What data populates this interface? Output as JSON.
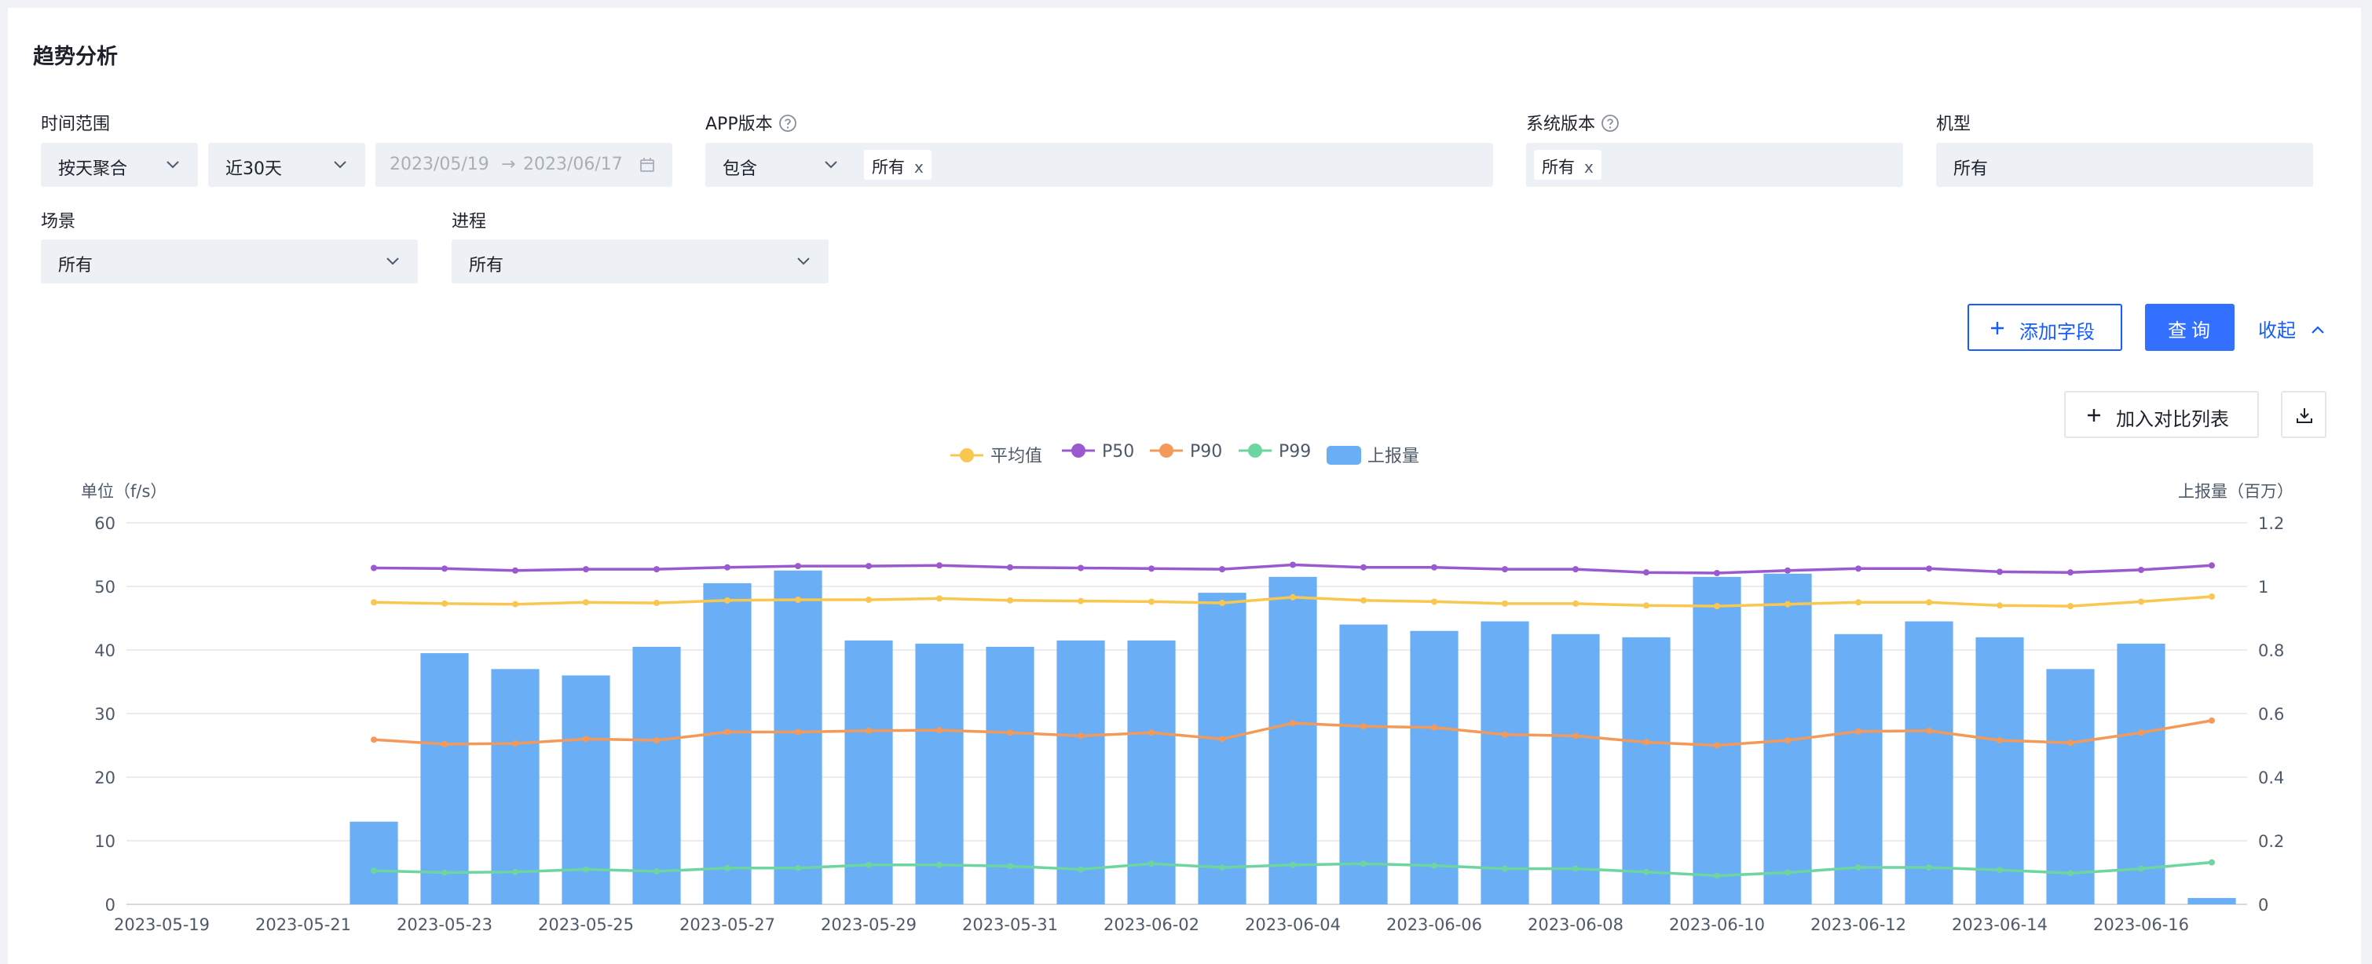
{
  "page": {
    "title": "趋势分析"
  },
  "filters": {
    "time_range": {
      "label": "时间范围",
      "aggregation": "按天聚合",
      "preset": "近30天",
      "start_date": "2023/05/19",
      "arrow": "→",
      "end_date": "2023/06/17"
    },
    "app_version": {
      "label": "APP版本",
      "operator": "包含",
      "tag": "所有",
      "tag_remove": "x"
    },
    "os_version": {
      "label": "系统版本",
      "tag": "所有",
      "tag_remove": "x"
    },
    "model": {
      "label": "机型",
      "value": "所有"
    },
    "scene": {
      "label": "场景",
      "value": "所有"
    },
    "process": {
      "label": "进程",
      "value": "所有"
    }
  },
  "actions": {
    "add_field_label": "添加字段",
    "query_label": "查询",
    "collapse_label": "收起",
    "add_compare_label": "加入对比列表"
  },
  "colors": {
    "accent": "#165dff",
    "avg": "#f9c74f",
    "p50": "#9b59d0",
    "p90": "#f39a5a",
    "p99": "#6dd5a0",
    "bars": "#6aaff5"
  },
  "icons": {
    "help": "question-circle-icon",
    "calendar": "calendar-icon",
    "plus": "plus-icon",
    "chevron": "chevron-down-icon",
    "collapse": "chevron-up-icon",
    "download": "download-icon"
  },
  "chart_data": {
    "type": "bar+line",
    "left_axis_unit": "单位（f/s）",
    "right_axis_unit": "上报量（百万）",
    "left_ylim": [
      0,
      60
    ],
    "left_ticks": [
      0,
      10,
      20,
      30,
      40,
      50,
      60
    ],
    "right_ylim": [
      0,
      1.2
    ],
    "right_ticks": [
      "0",
      "0.2",
      "0.4",
      "0.6",
      "0.8",
      "1",
      "1.2"
    ],
    "grid": true,
    "legend_position": "top-center",
    "categories": [
      "2023-05-19",
      "2023-05-20",
      "2023-05-21",
      "2023-05-22",
      "2023-05-23",
      "2023-05-24",
      "2023-05-25",
      "2023-05-26",
      "2023-05-27",
      "2023-05-28",
      "2023-05-29",
      "2023-05-30",
      "2023-05-31",
      "2023-06-01",
      "2023-06-02",
      "2023-06-03",
      "2023-06-04",
      "2023-06-05",
      "2023-06-06",
      "2023-06-07",
      "2023-06-08",
      "2023-06-09",
      "2023-06-10",
      "2023-06-11",
      "2023-06-12",
      "2023-06-13",
      "2023-06-14",
      "2023-06-15",
      "2023-06-16",
      "2023-06-17"
    ],
    "x_tick_labels": [
      "2023-05-19",
      "2023-05-21",
      "2023-05-23",
      "2023-05-25",
      "2023-05-27",
      "2023-05-29",
      "2023-05-31",
      "2023-06-02",
      "2023-06-04",
      "2023-06-06",
      "2023-06-08",
      "2023-06-10",
      "2023-06-12",
      "2023-06-14",
      "2023-06-16"
    ],
    "bar_series": {
      "name": "上报量",
      "axis": "right",
      "values": [
        null,
        null,
        null,
        0.26,
        0.79,
        0.74,
        0.72,
        0.81,
        1.01,
        1.05,
        0.83,
        0.82,
        0.81,
        0.83,
        0.83,
        0.98,
        1.03,
        0.88,
        0.86,
        0.89,
        0.85,
        0.84,
        1.03,
        1.04,
        0.85,
        0.89,
        0.84,
        0.74,
        0.82,
        0.02
      ]
    },
    "line_series": [
      {
        "name": "平均值",
        "color_key": "avg",
        "axis": "left",
        "values": [
          null,
          null,
          null,
          47.5,
          47.3,
          47.2,
          47.5,
          47.4,
          47.8,
          47.9,
          47.9,
          48.1,
          47.8,
          47.7,
          47.6,
          47.4,
          48.3,
          47.8,
          47.6,
          47.3,
          47.3,
          47.0,
          46.9,
          47.2,
          47.5,
          47.5,
          47.0,
          46.9,
          47.6,
          48.4
        ]
      },
      {
        "name": "P50",
        "color_key": "p50",
        "axis": "left",
        "values": [
          null,
          null,
          null,
          52.9,
          52.8,
          52.5,
          52.7,
          52.7,
          53.0,
          53.2,
          53.2,
          53.3,
          53.0,
          52.9,
          52.8,
          52.7,
          53.4,
          53.0,
          53.0,
          52.7,
          52.7,
          52.2,
          52.1,
          52.5,
          52.8,
          52.8,
          52.3,
          52.2,
          52.6,
          53.3
        ]
      },
      {
        "name": "P90",
        "color_key": "p90",
        "axis": "left",
        "values": [
          null,
          null,
          null,
          25.9,
          25.2,
          25.3,
          26.0,
          25.8,
          27.1,
          27.1,
          27.3,
          27.4,
          27.0,
          26.5,
          27.0,
          26.0,
          28.5,
          28.0,
          27.8,
          26.7,
          26.5,
          25.5,
          25.0,
          25.8,
          27.2,
          27.3,
          25.8,
          25.4,
          27.0,
          28.9
        ]
      },
      {
        "name": "P99",
        "color_key": "p99",
        "axis": "left",
        "values": [
          null,
          null,
          null,
          5.3,
          5.0,
          5.1,
          5.5,
          5.2,
          5.7,
          5.7,
          6.2,
          6.2,
          6.0,
          5.5,
          6.4,
          5.8,
          6.2,
          6.4,
          6.1,
          5.6,
          5.6,
          5.1,
          4.5,
          5.0,
          5.8,
          5.8,
          5.4,
          4.9,
          5.6,
          6.6
        ]
      }
    ]
  }
}
